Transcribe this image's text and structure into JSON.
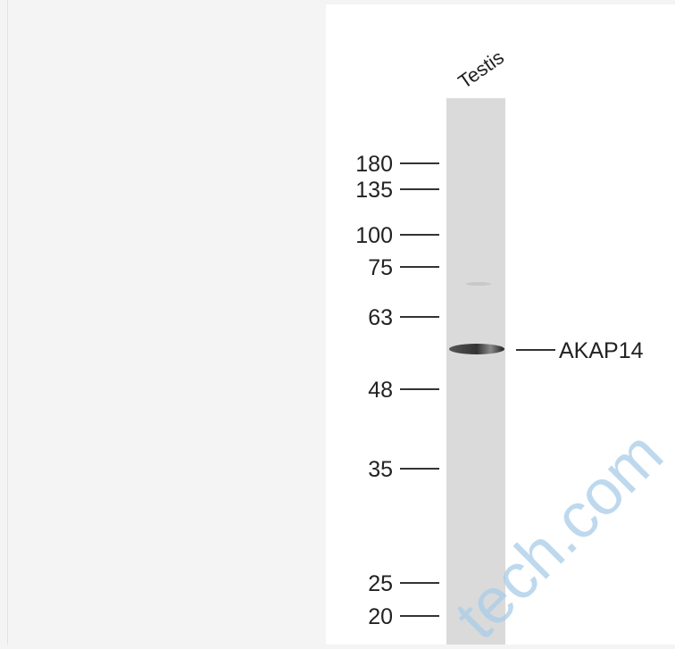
{
  "lane_label": "Testis",
  "markers": [
    "180",
    "135",
    "100",
    "75",
    "63",
    "48",
    "35",
    "25",
    "20"
  ],
  "target": "AKAP14",
  "watermark": "tech.com"
}
